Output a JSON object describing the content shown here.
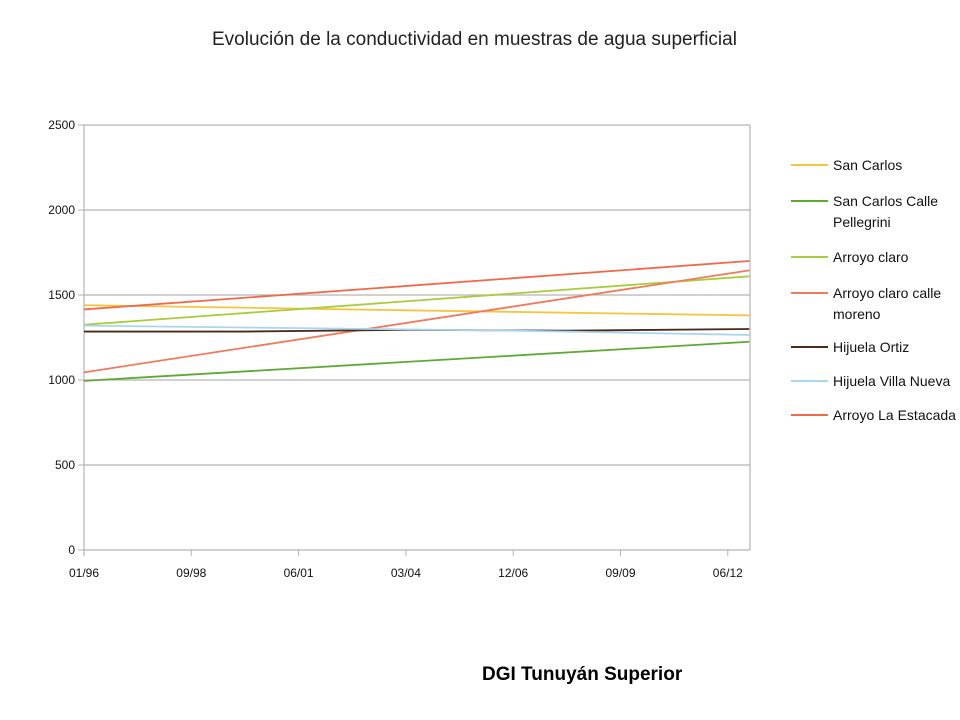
{
  "chart_data": {
    "type": "line",
    "title": "Evolución de la conductividad en muestras de agua superficial",
    "xlabel": "",
    "ylabel": "",
    "x": [
      "01/96",
      "09/98",
      "06/01",
      "03/04",
      "12/06",
      "09/09",
      "06/12"
    ],
    "ylim": [
      0,
      2500
    ],
    "yticks": [
      0,
      500,
      1000,
      1500,
      2000,
      2500
    ],
    "grid": true,
    "legend_position": "right",
    "series": [
      {
        "name": "San Carlos",
        "color": "#f5c542",
        "points": [
          [
            0,
            1440
          ],
          [
            3,
            1410
          ],
          [
            6.2,
            1380
          ]
        ]
      },
      {
        "name": "San Carlos Calle Pellegrini",
        "color": "#5fa832",
        "points": [
          [
            0,
            995
          ],
          [
            6.2,
            1225
          ]
        ]
      },
      {
        "name": "Arroyo claro",
        "color": "#a8cd3c",
        "points": [
          [
            0,
            1325
          ],
          [
            6.2,
            1610
          ]
        ]
      },
      {
        "name": "Arroyo claro calle moreno",
        "color": "#f07a5a",
        "points": [
          [
            0,
            1045
          ],
          [
            6.2,
            1645
          ]
        ]
      },
      {
        "name": "Hijuela Ortiz",
        "color": "#4a2b1a",
        "points": [
          [
            0,
            1285
          ],
          [
            1.5,
            1285
          ],
          [
            3,
            1295
          ],
          [
            4.5,
            1290
          ],
          [
            6.2,
            1300
          ]
        ]
      },
      {
        "name": "Hijuela Villa Nueva",
        "color": "#a9d6f0",
        "points": [
          [
            0,
            1320
          ],
          [
            2,
            1305
          ],
          [
            4,
            1290
          ],
          [
            6.2,
            1265
          ]
        ]
      },
      {
        "name": "Arroyo La Estacada",
        "color": "#f06a4a",
        "points": [
          [
            0,
            1415
          ],
          [
            6.2,
            1700
          ]
        ]
      }
    ]
  },
  "legend_labels": [
    [
      "San Carlos"
    ],
    [
      "San Carlos Calle",
      "Pellegrini"
    ],
    [
      "Arroyo claro"
    ],
    [
      "Arroyo claro calle",
      "moreno"
    ],
    [
      "Hijuela Ortiz"
    ],
    [
      "Hijuela Villa Nueva"
    ],
    [
      "Arroyo La Estacada"
    ]
  ],
  "footer": "DGI Tunuyán Superior"
}
